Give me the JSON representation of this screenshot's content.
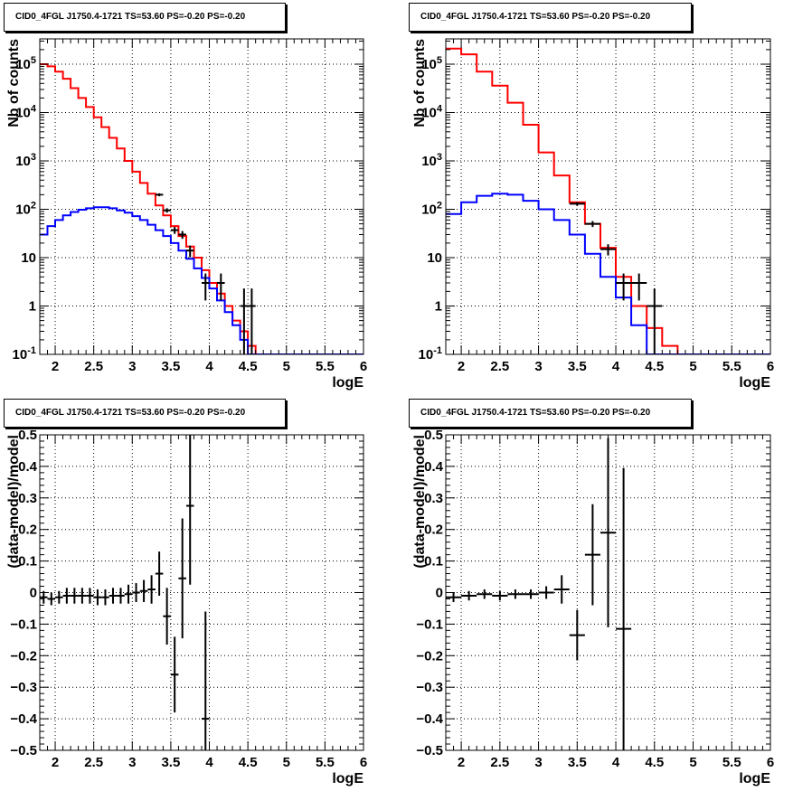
{
  "titles": [
    "CID0_4FGL J1750.4-1721 TS=53.60 PS=-0.20 PS=-0.20",
    "CID0_4FGL J1750.4-1721 TS=53.60 PS=-0.20 PS=-0.20",
    "CID0_4FGL J1750.4-1721 TS=53.60 PS=-0.20 PS=-0.20",
    "CID0_4FGL J1750.4-1721 TS=53.60 PS=-0.20 PS=-0.20"
  ],
  "colors": {
    "model_total": "#ff0000",
    "model_source": "#0000ff",
    "data": "#000000"
  },
  "chart_data": [
    {
      "type": "line",
      "title": "CID0_4FGL J1750.4-1721 TS=53.60 PS=-0.20 PS=-0.20",
      "xlabel": "logE",
      "ylabel": "Nb of counts",
      "xlim": [
        1.8,
        6.0
      ],
      "ylim": [
        0.1,
        400000
      ],
      "yscale": "log",
      "grid": true,
      "xticks": [
        "2",
        "2.5",
        "3",
        "3.5",
        "4",
        "4.5",
        "5",
        "5.5",
        "6"
      ],
      "yticks": [
        "10^-1",
        "1",
        "10",
        "10^2",
        "10^3",
        "10^4",
        "10^5"
      ],
      "bin_edges": [
        1.8,
        1.9,
        2.0,
        2.1,
        2.2,
        2.3,
        2.4,
        2.5,
        2.6,
        2.7,
        2.8,
        2.9,
        3.0,
        3.1,
        3.2,
        3.3,
        3.4,
        3.5,
        3.6,
        3.7,
        3.8,
        3.9,
        4.0,
        4.1,
        4.2,
        4.3,
        4.4,
        4.5,
        4.6,
        4.7,
        4.8,
        4.9,
        5.0,
        5.1,
        5.2,
        5.3,
        5.4,
        5.5,
        5.6,
        5.7,
        5.8,
        5.9,
        6.0
      ],
      "series": [
        {
          "color": "red",
          "draw": "step",
          "values": [
            100000,
            90000,
            70000,
            50000,
            32000,
            20000,
            13000,
            8000,
            5000,
            3000,
            1800,
            1000,
            600,
            350,
            210,
            120,
            75,
            45,
            28,
            17,
            10,
            5.5,
            3,
            1.8,
            1,
            0.5,
            0.3,
            0.15,
            0.1,
            0.1,
            0.1,
            0.1,
            0.1,
            0.1,
            0.1,
            0.1,
            0.1,
            0.1,
            0.1,
            0.1,
            0.1,
            0.1
          ]
        },
        {
          "color": "blue",
          "draw": "step",
          "values": [
            30,
            45,
            60,
            75,
            88,
            98,
            105,
            110,
            110,
            105,
            95,
            85,
            72,
            60,
            48,
            37,
            28,
            20,
            14,
            9.5,
            6,
            3.8,
            2.3,
            1.3,
            0.75,
            0.4,
            0.2,
            0.1,
            0.1,
            0.1,
            0.1,
            0.1,
            0.1,
            0.1,
            0.1,
            0.1,
            0.1,
            0.1,
            0.1,
            0.1,
            0.1,
            0.1
          ]
        },
        {
          "color": "black",
          "draw": "points",
          "x": [
            3.35,
            3.45,
            3.55,
            3.65,
            3.75,
            3.95,
            4.15,
            4.45,
            4.55
          ],
          "y": [
            200,
            95,
            37,
            30,
            14,
            3,
            3,
            1,
            1
          ],
          "err_lo": [
            14,
            10,
            6,
            5.5,
            3.8,
            1.7,
            1.7,
            0.9,
            0.9
          ],
          "err_hi": [
            14,
            10,
            6,
            5.5,
            3.8,
            1.7,
            1.7,
            1.3,
            1.3
          ]
        }
      ]
    },
    {
      "type": "line",
      "title": "CID0_4FGL J1750.4-1721 TS=53.60 PS=-0.20 PS=-0.20",
      "xlabel": "logE",
      "ylabel": "Nb of counts",
      "xlim": [
        1.8,
        6.0
      ],
      "ylim": [
        0.1,
        400000
      ],
      "yscale": "log",
      "grid": true,
      "xticks": [
        "2",
        "2.5",
        "3",
        "3.5",
        "4",
        "4.5",
        "5",
        "5.5",
        "6"
      ],
      "yticks": [
        "10^-1",
        "1",
        "10",
        "10^2",
        "10^3",
        "10^4",
        "10^5"
      ],
      "bin_edges": [
        1.8,
        2.0,
        2.2,
        2.4,
        2.6,
        2.8,
        3.0,
        3.2,
        3.4,
        3.6,
        3.8,
        4.0,
        4.2,
        4.4,
        4.6,
        4.8,
        5.0,
        5.2,
        5.4,
        5.6,
        5.8,
        6.0
      ],
      "series": [
        {
          "color": "red",
          "draw": "step",
          "values": [
            210000,
            160000,
            70000,
            36000,
            16000,
            5600,
            1500,
            500,
            140,
            50,
            16,
            4,
            1,
            0.35,
            0.15,
            0.1,
            0.1,
            0.1,
            0.1,
            0.1,
            0.1
          ]
        },
        {
          "color": "blue",
          "draw": "step",
          "values": [
            80,
            140,
            190,
            210,
            200,
            150,
            100,
            60,
            30,
            12,
            4,
            1.5,
            0.4,
            0.1,
            0.1,
            0.1,
            0.1,
            0.1,
            0.1,
            0.1,
            0.1
          ]
        },
        {
          "color": "black",
          "draw": "points",
          "x": [
            3.5,
            3.7,
            3.9,
            4.1,
            4.3,
            4.5
          ],
          "y": [
            130,
            50,
            15,
            3,
            3,
            1
          ],
          "err_lo": [
            11,
            7,
            3.9,
            1.7,
            1.7,
            0.9
          ],
          "err_hi": [
            11,
            7,
            3.9,
            1.7,
            1.7,
            1.3
          ]
        }
      ]
    },
    {
      "type": "scatter",
      "title": "CID0_4FGL J1750.4-1721 TS=53.60 PS=-0.20 PS=-0.20",
      "xlabel": "logE",
      "ylabel": "(data-model)/model",
      "xlim": [
        1.8,
        6.0
      ],
      "ylim": [
        -0.5,
        0.5
      ],
      "grid": true,
      "xticks": [
        "2",
        "2.5",
        "3",
        "3.5",
        "4",
        "4.5",
        "5",
        "5.5",
        "6"
      ],
      "yticks": [
        "-0.5",
        "-0.4",
        "-0.3",
        "-0.2",
        "-0.1",
        "0",
        "0.1",
        "0.2",
        "0.3",
        "0.4",
        "0.5"
      ],
      "series": [
        {
          "color": "black",
          "x": [
            1.85,
            1.95,
            2.05,
            2.15,
            2.25,
            2.35,
            2.45,
            2.55,
            2.65,
            2.75,
            2.85,
            2.95,
            3.05,
            3.15,
            3.25,
            3.35,
            3.45,
            3.55,
            3.65,
            3.75,
            3.95
          ],
          "y": [
            -0.015,
            -0.02,
            -0.015,
            -0.01,
            -0.01,
            -0.01,
            -0.01,
            -0.015,
            -0.015,
            -0.01,
            -0.01,
            -0.005,
            0.0,
            0.005,
            0.01,
            0.06,
            -0.075,
            -0.26,
            0.045,
            0.275,
            -0.4
          ],
          "err": [
            0.02,
            0.02,
            0.02,
            0.025,
            0.025,
            0.025,
            0.025,
            0.025,
            0.025,
            0.025,
            0.025,
            0.03,
            0.03,
            0.035,
            0.045,
            0.07,
            0.09,
            0.12,
            0.19,
            0.25,
            0.34
          ]
        }
      ]
    },
    {
      "type": "scatter",
      "title": "CID0_4FGL J1750.4-1721 TS=53.60 PS=-0.20 PS=-0.20",
      "xlabel": "logE",
      "ylabel": "(data-model)/model",
      "xlim": [
        1.8,
        6.0
      ],
      "ylim": [
        -0.5,
        0.5
      ],
      "grid": true,
      "xticks": [
        "2",
        "2.5",
        "3",
        "3.5",
        "4",
        "4.5",
        "5",
        "5.5",
        "6"
      ],
      "yticks": [
        "-0.5",
        "-0.4",
        "-0.3",
        "-0.2",
        "-0.1",
        "0",
        "0.1",
        "0.2",
        "0.3",
        "0.4",
        "0.5"
      ],
      "series": [
        {
          "color": "black",
          "x": [
            1.9,
            2.1,
            2.3,
            2.5,
            2.7,
            2.9,
            3.1,
            3.3,
            3.5,
            3.7,
            3.9,
            4.1
          ],
          "y": [
            -0.015,
            -0.01,
            -0.005,
            -0.01,
            -0.005,
            -0.005,
            0.0,
            0.01,
            -0.135,
            0.12,
            0.19,
            -0.115
          ],
          "err": [
            0.015,
            0.015,
            0.015,
            0.015,
            0.015,
            0.015,
            0.02,
            0.045,
            0.08,
            0.16,
            0.3,
            0.51
          ]
        }
      ]
    }
  ]
}
